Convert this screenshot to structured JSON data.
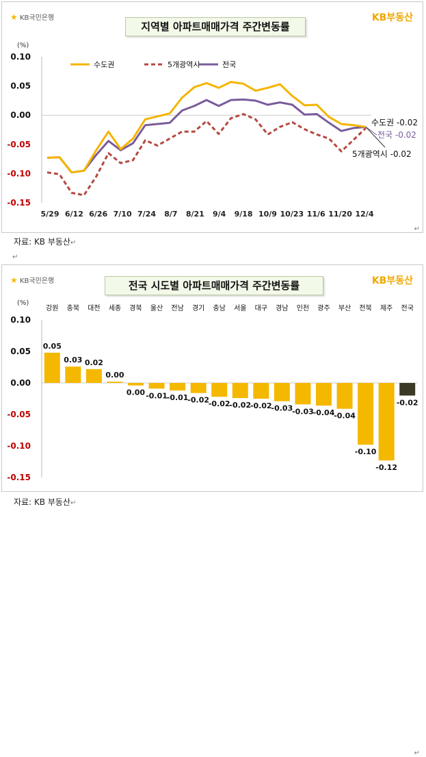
{
  "panel1": {
    "logo": "KB국민은행",
    "brand": "KB부동산",
    "source": "자료: KB 부동산",
    "chart_data": {
      "type": "line",
      "title": "지역별 아파트매매가격 주간변동률",
      "ylabel": "(%)",
      "ylim": [
        -0.15,
        0.1
      ],
      "yticks": [
        0.1,
        0.05,
        0.0,
        -0.05,
        -0.1,
        -0.15
      ],
      "ytick_labels": [
        "0.10",
        "0.05",
        "0.00",
        "-0.05",
        "-0.10",
        "-0.15"
      ],
      "xtick_labels": [
        "5/29",
        "6/12",
        "6/26",
        "7/10",
        "7/24",
        "8/7",
        "8/21",
        "9/4",
        "9/18",
        "10/9",
        "10/23",
        "11/6",
        "11/20",
        "12/4"
      ],
      "legend_position": "top-left",
      "series": [
        {
          "name": "수도권",
          "color": "#f5b400",
          "dash": "solid",
          "values": [
            -0.073,
            -0.072,
            -0.098,
            -0.095,
            -0.06,
            -0.028,
            -0.058,
            -0.04,
            -0.007,
            -0.002,
            0.003,
            0.03,
            0.048,
            0.055,
            0.047,
            0.057,
            0.054,
            0.042,
            0.047,
            0.053,
            0.033,
            0.017,
            0.018,
            -0.003,
            -0.015,
            -0.017,
            -0.02
          ],
          "end_label": "수도권 -0.02"
        },
        {
          "name": "5개광역시",
          "color": "#b5483e",
          "dash": "dashed",
          "values": [
            -0.098,
            -0.101,
            -0.133,
            -0.137,
            -0.105,
            -0.065,
            -0.082,
            -0.077,
            -0.043,
            -0.052,
            -0.04,
            -0.028,
            -0.028,
            -0.01,
            -0.032,
            -0.005,
            0.002,
            -0.007,
            -0.033,
            -0.02,
            -0.012,
            -0.024,
            -0.033,
            -0.04,
            -0.062,
            -0.042,
            -0.022
          ],
          "end_label": "5개광역시 -0.02"
        },
        {
          "name": "전국",
          "color": "#7a5c9c",
          "dash": "solid",
          "values": [
            -0.073,
            -0.072,
            -0.098,
            -0.095,
            -0.068,
            -0.044,
            -0.06,
            -0.048,
            -0.017,
            -0.015,
            -0.013,
            0.008,
            0.016,
            0.026,
            0.016,
            0.026,
            0.027,
            0.025,
            0.018,
            0.022,
            0.018,
            0.001,
            0.002,
            -0.013,
            -0.027,
            -0.022,
            -0.02
          ],
          "end_label": "전국 -0.02"
        }
      ]
    }
  },
  "panel2": {
    "logo": "KB국민은행",
    "brand": "KB부동산",
    "source": "자료: KB 부동산",
    "chart_data": {
      "type": "bar",
      "title": "전국 시도별 아파트매매가격 주간변동률",
      "ylabel": "(%)",
      "ylim": [
        -0.15,
        0.1
      ],
      "yticks": [
        0.1,
        0.05,
        0.0,
        -0.05,
        -0.1,
        -0.15
      ],
      "ytick_labels": [
        "0.10",
        "0.05",
        "0.00",
        "-0.05",
        "-0.10",
        "-0.15"
      ],
      "categories": [
        "강원",
        "충북",
        "대전",
        "세종",
        "경북",
        "울산",
        "전남",
        "경기",
        "충남",
        "서울",
        "대구",
        "경남",
        "인천",
        "광주",
        "부산",
        "전북",
        "제주",
        "전국"
      ],
      "values": [
        0.048,
        0.026,
        0.022,
        0.002,
        -0.004,
        -0.009,
        -0.012,
        -0.016,
        -0.022,
        -0.024,
        -0.025,
        -0.029,
        -0.034,
        -0.036,
        -0.041,
        -0.098,
        -0.123,
        -0.02
      ],
      "value_labels": [
        "0.05",
        "0.03",
        "0.02",
        "0.00",
        "0.00",
        "-0.01",
        "-0.01",
        "-0.02",
        "-0.02",
        "-0.02",
        "-0.02",
        "-0.03",
        "-0.03",
        "-0.04",
        "-0.04",
        "-0.10",
        "-0.12",
        "-0.02"
      ],
      "bar_color": "#f5b800",
      "highlight_color": "#3b3a26",
      "highlight_index": 17
    }
  }
}
